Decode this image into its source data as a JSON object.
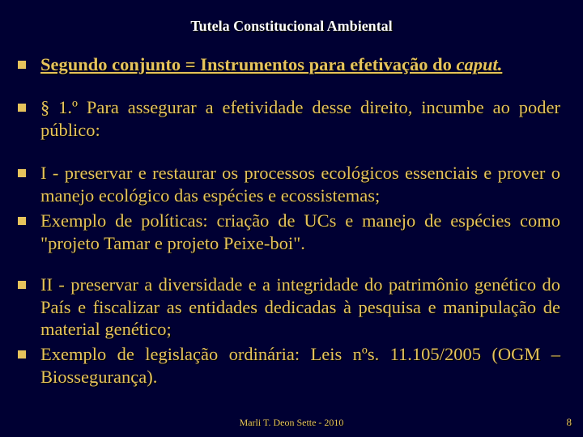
{
  "colors": {
    "background": "#000033",
    "text": "#e6c35c",
    "title": "#ffffff",
    "bullet": "#e6c35c",
    "shadow": "#000000"
  },
  "typography": {
    "title_fontsize": 18,
    "body_fontsize": 22.5,
    "footer_fontsize": 12,
    "font_family": "Times New Roman"
  },
  "title": "Tutela Constitucional Ambiental",
  "bullets": {
    "b1a": "Segundo conjunto = Instrumentos para efetivação do ",
    "b1b": "caput.",
    "b2": "§ 1.º Para assegurar a efetividade desse direito, incumbe ao poder público:",
    "b3": "I - preservar e restaurar os processos ecológicos essenciais e prover o manejo ecológico das espécies e ecossistemas;",
    "b4": "Exemplo de políticas: criação de UCs e manejo de espécies como \"projeto Tamar e projeto Peixe-boi\".",
    "b5": "II - preservar a diversidade e a integridade do patrimônio genético do País e fiscalizar as entidades dedicadas à pesquisa e manipulação de material genético;",
    "b6": "Exemplo de legislação ordinária: Leis nºs. 11.105/2005 (OGM – Biossegurança)."
  },
  "footer": {
    "center": "Marli T. Deon Sette -  2010",
    "page": "8"
  }
}
